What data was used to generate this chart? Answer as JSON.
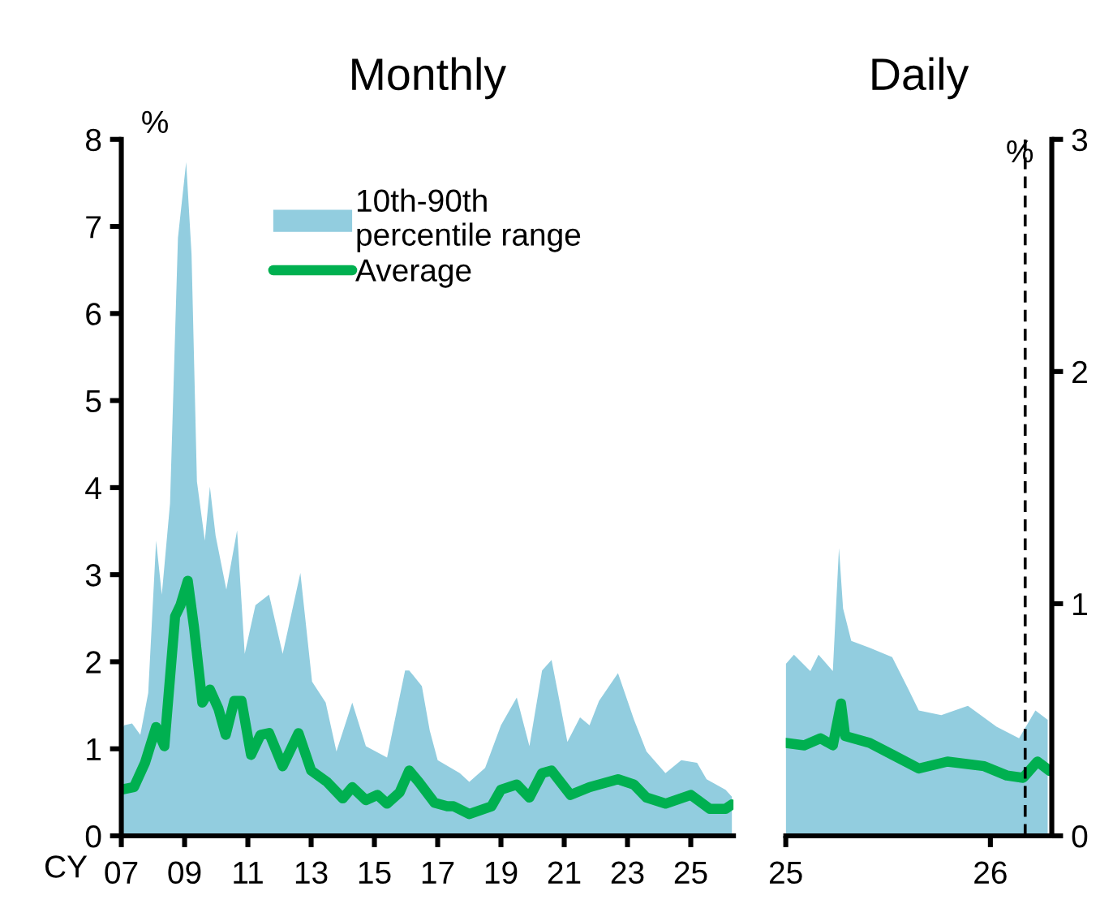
{
  "chart_data": [
    {
      "type": "line",
      "title": "Monthly",
      "ylabel": "%",
      "annotations": [
        "CY"
      ],
      "xlim": [
        2007,
        2026.35
      ],
      "xticks": [
        {
          "value": 2007,
          "label": "07"
        },
        {
          "value": 2009,
          "label": "09"
        },
        {
          "value": 2011,
          "label": "11"
        },
        {
          "value": 2013,
          "label": "13"
        },
        {
          "value": 2015,
          "label": "15"
        },
        {
          "value": 2017,
          "label": "17"
        },
        {
          "value": 2019,
          "label": "19"
        },
        {
          "value": 2021,
          "label": "21"
        },
        {
          "value": 2023,
          "label": "23"
        },
        {
          "value": 2025,
          "label": "25"
        }
      ],
      "ylim": [
        0,
        8
      ],
      "yticks": [
        0,
        1,
        2,
        3,
        4,
        5,
        6,
        7,
        8
      ],
      "grid": false,
      "legend": "top",
      "series": [
        {
          "name": "10th-90th\npercentile range",
          "type": "area",
          "color": "#92cddf",
          "x": [
            2007.0,
            2007.09,
            2007.34,
            2007.6,
            2007.85,
            2008.1,
            2008.28,
            2008.54,
            2008.79,
            2009.05,
            2009.22,
            2009.39,
            2009.64,
            2009.8,
            2009.98,
            2010.32,
            2010.66,
            2010.9,
            2011.24,
            2011.67,
            2012.1,
            2012.66,
            2013.03,
            2013.46,
            2013.8,
            2014.3,
            2014.73,
            2015.4,
            2015.97,
            2016.1,
            2016.5,
            2016.75,
            2017.0,
            2017.7,
            2018.0,
            2018.5,
            2019.0,
            2019.5,
            2019.9,
            2020.3,
            2020.6,
            2021.1,
            2021.5,
            2021.8,
            2022.1,
            2022.7,
            2023.2,
            2023.6,
            2024.2,
            2024.7,
            2025.2,
            2025.5,
            2026.1,
            2026.3
          ],
          "values": [
            1.2,
            1.27,
            1.29,
            1.16,
            1.64,
            3.39,
            2.77,
            3.82,
            6.87,
            7.74,
            6.68,
            4.07,
            3.39,
            4.01,
            3.45,
            2.83,
            3.51,
            2.09,
            2.65,
            2.77,
            2.09,
            3.02,
            1.77,
            1.53,
            0.97,
            1.53,
            1.03,
            0.9,
            1.9,
            1.9,
            1.72,
            1.21,
            0.87,
            0.72,
            0.62,
            0.78,
            1.27,
            1.59,
            1.03,
            1.9,
            2.02,
            1.08,
            1.36,
            1.27,
            1.55,
            1.87,
            1.34,
            0.97,
            0.72,
            0.87,
            0.84,
            0.65,
            0.53,
            0.45
          ]
        },
        {
          "name": "Average",
          "color": "#00b050",
          "x": [
            2007.0,
            2007.4,
            2007.75,
            2008.1,
            2008.36,
            2008.7,
            2008.87,
            2009.1,
            2009.3,
            2009.56,
            2009.8,
            2010.07,
            2010.3,
            2010.57,
            2010.8,
            2011.1,
            2011.4,
            2011.67,
            2012.1,
            2012.6,
            2013.0,
            2013.5,
            2014.0,
            2014.3,
            2014.73,
            2015.1,
            2015.4,
            2015.8,
            2016.1,
            2016.4,
            2016.9,
            2017.3,
            2017.5,
            2018.0,
            2018.7,
            2019.0,
            2019.5,
            2019.9,
            2020.3,
            2020.6,
            2021.2,
            2021.8,
            2022.7,
            2023.2,
            2023.6,
            2024.2,
            2025.0,
            2025.6,
            2026.1,
            2026.3
          ],
          "values": [
            0.53,
            0.56,
            0.84,
            1.25,
            1.03,
            2.52,
            2.65,
            2.93,
            2.39,
            1.53,
            1.68,
            1.46,
            1.16,
            1.55,
            1.55,
            0.93,
            1.16,
            1.18,
            0.8,
            1.18,
            0.75,
            0.62,
            0.43,
            0.56,
            0.41,
            0.47,
            0.37,
            0.5,
            0.75,
            0.62,
            0.38,
            0.34,
            0.34,
            0.25,
            0.34,
            0.53,
            0.59,
            0.44,
            0.72,
            0.75,
            0.47,
            0.56,
            0.65,
            0.59,
            0.44,
            0.37,
            0.47,
            0.31,
            0.31,
            0.36
          ]
        }
      ]
    },
    {
      "type": "line",
      "title": "Daily",
      "ylabel": "%",
      "xlim": [
        2025,
        2026.3
      ],
      "xticks": [
        {
          "value": 2025,
          "label": "25"
        },
        {
          "value": 2026,
          "label": "26"
        }
      ],
      "ylim": [
        0,
        3
      ],
      "yticks": [
        0,
        1,
        2,
        3
      ],
      "grid": false,
      "legend": false,
      "ref_lines": [
        {
          "axis": "x",
          "value": 2026.17,
          "color": "#000000",
          "line_style": "dashed"
        }
      ],
      "series": [
        {
          "type": "area",
          "color": "#92cddf",
          "x": [
            2025.0,
            2025.04,
            2025.12,
            2025.16,
            2025.23,
            2025.26,
            2025.28,
            2025.32,
            2025.41,
            2025.52,
            2025.6,
            2025.65,
            2025.76,
            2025.89,
            2026.03,
            2026.14,
            2026.22,
            2026.28
          ],
          "values": [
            0.74,
            0.78,
            0.71,
            0.78,
            0.71,
            1.24,
            0.98,
            0.84,
            0.81,
            0.77,
            0.63,
            0.54,
            0.52,
            0.56,
            0.47,
            0.42,
            0.54,
            0.5
          ]
        },
        {
          "color": "#00b050",
          "x": [
            2025.0,
            2025.09,
            2025.17,
            2025.23,
            2025.27,
            2025.29,
            2025.41,
            2025.52,
            2025.65,
            2025.79,
            2025.97,
            2026.08,
            2026.16,
            2026.23,
            2026.29
          ],
          "values": [
            0.4,
            0.39,
            0.42,
            0.39,
            0.57,
            0.43,
            0.4,
            0.35,
            0.29,
            0.32,
            0.3,
            0.26,
            0.25,
            0.32,
            0.28
          ]
        }
      ]
    }
  ]
}
